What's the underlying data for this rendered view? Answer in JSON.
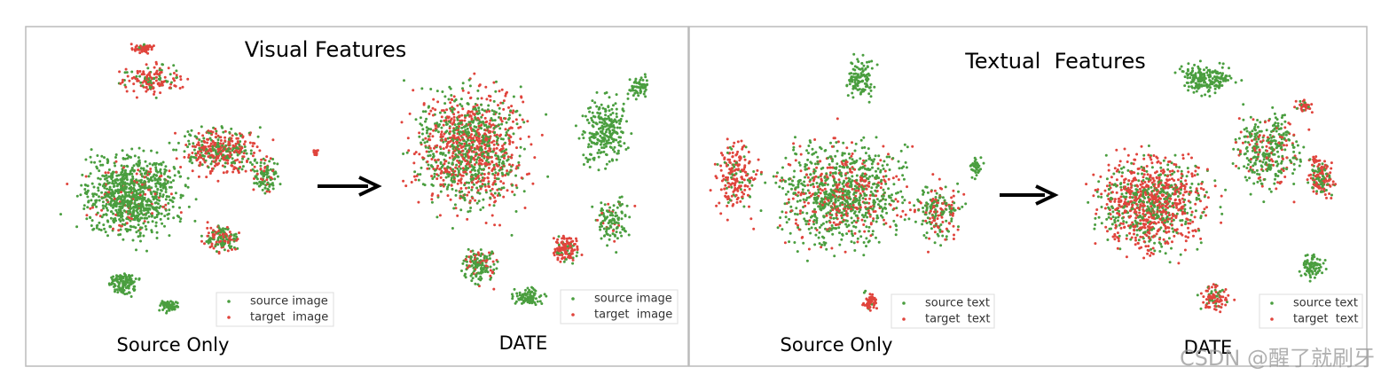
{
  "panels": [
    {
      "title": "Visual Features",
      "plots": [
        {
          "caption": "Source Only",
          "legend": [
            "source image",
            "target  image"
          ]
        },
        {
          "caption": "DATE",
          "legend": [
            "source image",
            "target  image"
          ]
        }
      ]
    },
    {
      "title": "Textual  Features",
      "plots": [
        {
          "caption": "Source Only",
          "legend": [
            "source text",
            "target  text"
          ]
        },
        {
          "caption": "DATE",
          "legend": [
            "source text",
            "target  text"
          ]
        }
      ]
    }
  ],
  "watermark": "CSDN @醒了就刷牙"
}
